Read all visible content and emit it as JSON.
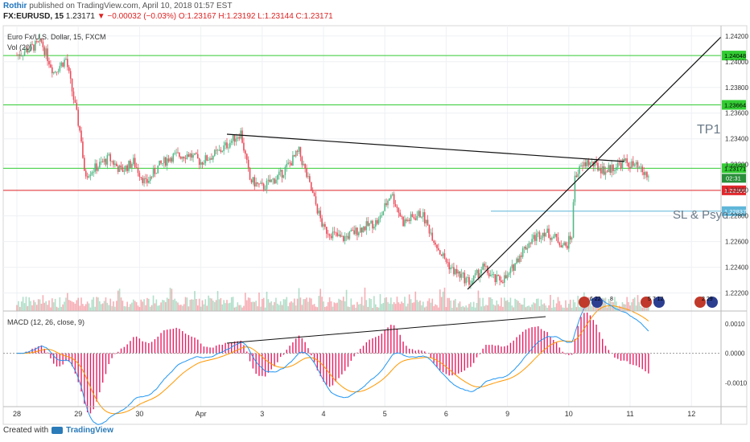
{
  "header": {
    "author": "Rothir",
    "published": "published on TradingView.com, April 10, 2018 01:57 EST",
    "symbol": "FX:EURUSD, 15",
    "last": "1.23171",
    "change": "−0.00032 (−0.03%)",
    "open": "O:1.23167",
    "high": "H:1.23192",
    "low": "L:1.23144",
    "close": "C:1.23171"
  },
  "pane_title": "Euro Fx/U.S. Dollar, 15, FXCM",
  "volume_label": "Vol (20)",
  "macd_label": "MACD (12, 26, close, 9)",
  "annotations": {
    "tp1": "TP1",
    "sl": "SL & Psyc"
  },
  "event_labels": [
    "6 22",
    "8",
    "5 7 12",
    "2 29"
  ],
  "footer": {
    "created": "Created with",
    "brand": "TradingView"
  },
  "colors": {
    "bull": "#53b987",
    "bear": "#eb4d5c",
    "green_line": "#33cc33",
    "red_line": "#e2262b",
    "blue_line": "#5fb6d9",
    "macd": "#2196f3",
    "signal": "#ff9800",
    "hist": "#e91e63"
  },
  "chart_data": {
    "type": "candlestick",
    "x_ticks": [
      "28",
      "29",
      "30",
      "Apr",
      "3",
      "4",
      "5",
      "6",
      "9",
      "10",
      "11",
      "12"
    ],
    "y_ticks": [
      1.242,
      1.24,
      1.238,
      1.236,
      1.234,
      1.232,
      1.23,
      1.228,
      1.226,
      1.224,
      1.222
    ],
    "ylim": [
      1.2206,
      1.2428
    ],
    "path": [
      [
        28,
        1.2405
      ],
      [
        28.4,
        1.2415
      ],
      [
        28.6,
        1.2392
      ],
      [
        28.8,
        1.2402
      ],
      [
        28.95,
        1.2365
      ],
      [
        29.05,
        1.234
      ],
      [
        29.1,
        1.2312
      ],
      [
        29.3,
        1.2318
      ],
      [
        29.5,
        1.2325
      ],
      [
        29.7,
        1.2315
      ],
      [
        29.9,
        1.2322
      ],
      [
        30.1,
        1.2305
      ],
      [
        30.3,
        1.2318
      ],
      [
        30.5,
        1.2326
      ],
      [
        30.8,
        1.2328
      ],
      [
        31,
        1.2322
      ],
      [
        31.3,
        1.233
      ],
      [
        31.65,
        1.2345
      ],
      [
        31.8,
        1.2308
      ],
      [
        32,
        1.2302
      ],
      [
        32.3,
        1.2312
      ],
      [
        32.6,
        1.233
      ],
      [
        32.8,
        1.23
      ],
      [
        33,
        1.227
      ],
      [
        33.3,
        1.2262
      ],
      [
        33.6,
        1.227
      ],
      [
        33.9,
        1.2276
      ],
      [
        34.1,
        1.2298
      ],
      [
        34.3,
        1.2275
      ],
      [
        34.6,
        1.2282
      ],
      [
        34.9,
        1.2252
      ],
      [
        35.1,
        1.2238
      ],
      [
        35.4,
        1.2228
      ],
      [
        35.6,
        1.224
      ],
      [
        35.8,
        1.223
      ],
      [
        36,
        1.2232
      ],
      [
        36.2,
        1.225
      ],
      [
        36.4,
        1.2262
      ],
      [
        36.6,
        1.2268
      ],
      [
        36.8,
        1.2262
      ],
      [
        36.95,
        1.2256
      ],
      [
        37.05,
        1.2265
      ],
      [
        37.1,
        1.2312
      ],
      [
        37.3,
        1.2322
      ],
      [
        37.6,
        1.2315
      ],
      [
        37.9,
        1.2322
      ],
      [
        38.1,
        1.2318
      ],
      [
        38.3,
        1.231
      ]
    ],
    "volume_max": 80,
    "macd_ylim": [
      -0.0018,
      0.0014
    ],
    "macd_ticks": [
      0.001,
      0.0,
      -0.001
    ],
    "horizontal_levels": [
      {
        "price": 1.24048,
        "label": "1.24048",
        "color": "green"
      },
      {
        "price": 1.23664,
        "label": "1.23664",
        "color": "green"
      },
      {
        "price": 1.23171,
        "label": "1.23171",
        "color": "green"
      },
      {
        "price": 1.22999,
        "label": "1.22999",
        "color": "red"
      },
      {
        "price": 1.22837,
        "label": "1.22837",
        "color": "blue"
      }
    ],
    "countdown": "02:31"
  }
}
